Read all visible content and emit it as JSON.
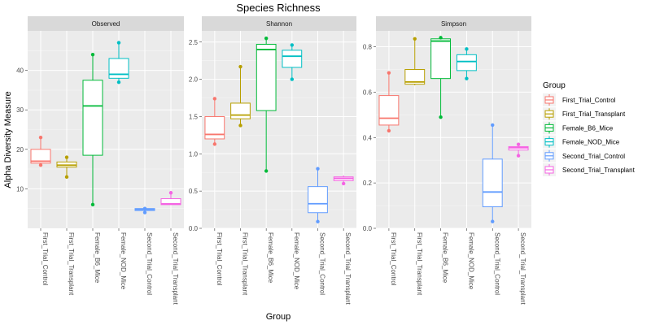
{
  "title": "Species Richness",
  "xlabel": "Group",
  "ylabel": "Alpha Diversity Measure",
  "legend": {
    "title": "Group",
    "items": [
      {
        "label": "First_Trial_Control",
        "color": "#F8766D"
      },
      {
        "label": "First_Trial_Transplant",
        "color": "#B79F00"
      },
      {
        "label": "Female_B6_Mice",
        "color": "#00BA38"
      },
      {
        "label": "Female_NOD_Mice",
        "color": "#00BFC4"
      },
      {
        "label": "Second_Trial_Control",
        "color": "#619CFF"
      },
      {
        "label": "Second_Trial_Transplant",
        "color": "#F564E3"
      }
    ]
  },
  "chart_data": [
    {
      "type": "box",
      "title": "Observed",
      "categories": [
        "First_Trial_Control",
        "First_Trial_Transplant",
        "Female_B6_Mice",
        "Female_NOD_Mice",
        "Second_Trial_Control",
        "Second_Trial_Transplant"
      ],
      "ylim": [
        0,
        50
      ],
      "yticks": [
        10,
        20,
        30,
        40
      ],
      "boxes": [
        {
          "min": 16,
          "q1": 16.5,
          "median": 17,
          "q3": 20,
          "max": 23,
          "points": [
            23,
            16
          ]
        },
        {
          "min": 13,
          "q1": 15.5,
          "median": 16,
          "q3": 16.8,
          "max": 18,
          "points": [
            18,
            13
          ]
        },
        {
          "min": 6,
          "q1": 18.5,
          "median": 31,
          "q3": 37.5,
          "max": 44,
          "points": [
            44,
            6
          ]
        },
        {
          "min": 37,
          "q1": 38,
          "median": 39,
          "q3": 43,
          "max": 47,
          "points": [
            47,
            37
          ]
        },
        {
          "min": 4,
          "q1": 4.5,
          "median": 4.8,
          "q3": 5,
          "max": 5,
          "points": [
            5,
            4
          ]
        },
        {
          "min": 6,
          "q1": 6,
          "median": 6.2,
          "q3": 7.5,
          "max": 9,
          "points": [
            9
          ]
        }
      ]
    },
    {
      "type": "box",
      "title": "Shannon",
      "categories": [
        "First_Trial_Control",
        "First_Trial_Transplant",
        "Female_B6_Mice",
        "Female_NOD_Mice",
        "Second_Trial_Control",
        "Second_Trial_Transplant"
      ],
      "ylim": [
        0,
        2.65
      ],
      "yticks": [
        0.0,
        0.5,
        1.0,
        1.5,
        2.0,
        2.5
      ],
      "boxes": [
        {
          "min": 1.13,
          "q1": 1.2,
          "median": 1.26,
          "q3": 1.5,
          "max": 1.74,
          "points": [
            1.74,
            1.13
          ]
        },
        {
          "min": 1.38,
          "q1": 1.47,
          "median": 1.52,
          "q3": 1.68,
          "max": 2.17,
          "points": [
            2.17,
            1.38
          ]
        },
        {
          "min": 0.77,
          "q1": 1.58,
          "median": 2.4,
          "q3": 2.47,
          "max": 2.55,
          "points": [
            2.55,
            0.77
          ]
        },
        {
          "min": 2.0,
          "q1": 2.16,
          "median": 2.31,
          "q3": 2.39,
          "max": 2.46,
          "points": [
            2.46,
            2.0
          ]
        },
        {
          "min": 0.09,
          "q1": 0.21,
          "median": 0.33,
          "q3": 0.56,
          "max": 0.8,
          "points": [
            0.8,
            0.09
          ]
        },
        {
          "min": 0.6,
          "q1": 0.64,
          "median": 0.67,
          "q3": 0.69,
          "max": 0.71,
          "points": [
            0.6
          ]
        }
      ]
    },
    {
      "type": "box",
      "title": "Simpson",
      "categories": [
        "First_Trial_Control",
        "First_Trial_Transplant",
        "Female_B6_Mice",
        "Female_NOD_Mice",
        "Second_Trial_Control",
        "Second_Trial_Transplant"
      ],
      "ylim": [
        0,
        0.87
      ],
      "yticks": [
        0.0,
        0.2,
        0.4,
        0.6,
        0.8
      ],
      "boxes": [
        {
          "min": 0.43,
          "q1": 0.455,
          "median": 0.485,
          "q3": 0.585,
          "max": 0.685,
          "points": [
            0.685,
            0.43
          ]
        },
        {
          "min": 0.63,
          "q1": 0.635,
          "median": 0.645,
          "q3": 0.7,
          "max": 0.835,
          "points": [
            0.835
          ]
        },
        {
          "min": 0.49,
          "q1": 0.66,
          "median": 0.825,
          "q3": 0.835,
          "max": 0.84,
          "points": [
            0.84,
            0.49
          ]
        },
        {
          "min": 0.66,
          "q1": 0.695,
          "median": 0.735,
          "q3": 0.765,
          "max": 0.79,
          "points": [
            0.79,
            0.66
          ]
        },
        {
          "min": 0.03,
          "q1": 0.095,
          "median": 0.16,
          "q3": 0.305,
          "max": 0.455,
          "points": [
            0.455,
            0.03
          ]
        },
        {
          "min": 0.32,
          "q1": 0.345,
          "median": 0.355,
          "q3": 0.36,
          "max": 0.37,
          "points": [
            0.37,
            0.32
          ]
        }
      ]
    }
  ]
}
